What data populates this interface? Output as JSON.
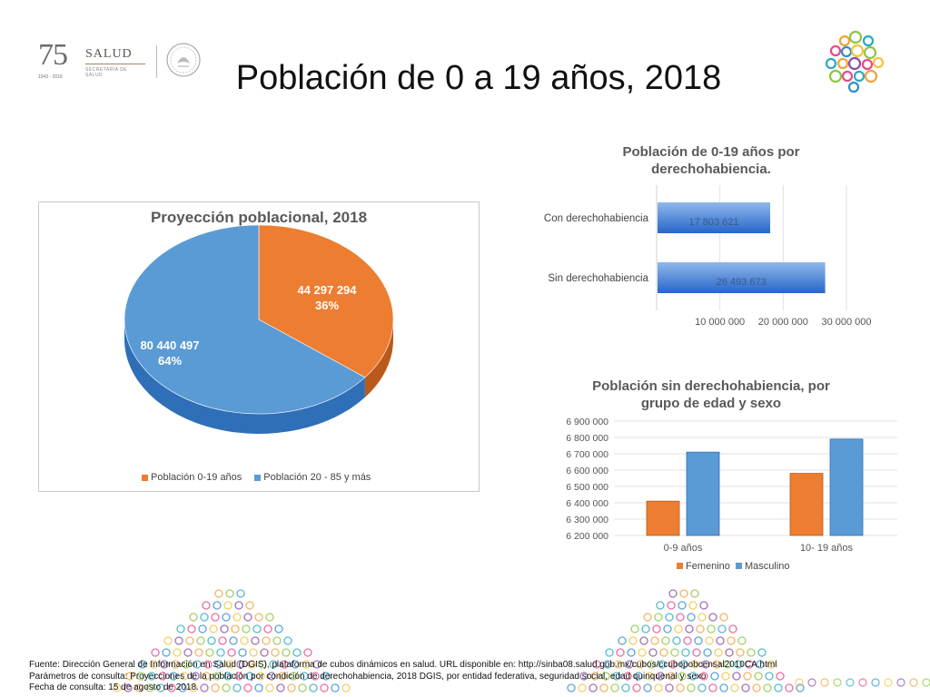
{
  "header": {
    "logo_75_number": "75",
    "logo_75_years": "1943 - 2018",
    "logo_salud_word": "SALUD",
    "logo_salud_sub": "SECRETARÍA DE SALUD",
    "title": "Población de 0 a 19 años, 2018"
  },
  "colors": {
    "orange": "#ED7D31",
    "blue": "#5B9BD5",
    "blue_dark": "#2E6FB8",
    "orange_dark": "#B95A1C",
    "bar_gradient_top": "#8FB8EA",
    "bar_gradient_bottom": "#2765C9"
  },
  "chart_data": [
    {
      "type": "pie",
      "title": "Proyección poblacional, 2018",
      "categories": [
        "Población 0-19 años",
        "Población 20 - 85 y más"
      ],
      "values": [
        44297294,
        80440497
      ],
      "value_labels": [
        "44 297 294",
        "80 440 497"
      ],
      "percent_labels": [
        "36%",
        "64%"
      ],
      "legend": "bottom"
    },
    {
      "type": "bar",
      "orientation": "horizontal",
      "title": "Población de 0-19 años por derechohabiencia.",
      "categories": [
        "Con derechohabiencia",
        "Sin derechohabiencia"
      ],
      "values": [
        17803621,
        26493673
      ],
      "value_labels": [
        "17 803 621",
        "26 493 673"
      ],
      "xlim": [
        0,
        30000000
      ],
      "xticks": [
        "10 000 000",
        "20 000 000",
        "30 000 000"
      ],
      "xtick_values": [
        10000000,
        20000000,
        30000000
      ],
      "grid": true
    },
    {
      "type": "bar",
      "title": "Población sin derechohabiencia, por grupo de edad y sexo",
      "categories": [
        "0-9 años",
        "10- 19 años"
      ],
      "series": [
        {
          "name": "Femenino",
          "values": [
            6410000,
            6580000
          ]
        },
        {
          "name": "Masculino",
          "values": [
            6710000,
            6790000
          ]
        }
      ],
      "ylim": [
        6200000,
        6900000
      ],
      "yticks": [
        "6 200 000",
        "6 300 000",
        "6 400 000",
        "6 500 000",
        "6 600 000",
        "6 700 000",
        "6 800 000",
        "6 900 000"
      ],
      "ytick_values": [
        6200000,
        6300000,
        6400000,
        6500000,
        6600000,
        6700000,
        6800000,
        6900000
      ],
      "legend": "bottom",
      "grid": true
    }
  ],
  "footer": {
    "lines": [
      "Fuente: Dirección General de Información en Salud (DGIS), plataforma de cubos dinámicos en salud. URL disponible en: http://sinba08.salud.gob.mx/cubos/ccubopobcensal2010CA.html",
      "Parámetros de consulta: Proyecciones de la población por condición de derechohabiencia, 2018 DGIS, por entidad federativa, seguridad social, edad quinquenal y sexo",
      "Fecha de consulta: 15 de agosto de 2018."
    ]
  }
}
